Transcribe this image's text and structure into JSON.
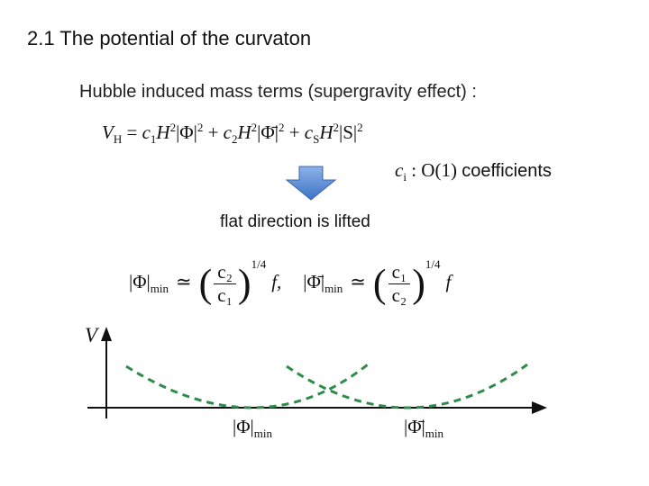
{
  "title": "2.1 The potential of the curvaton",
  "subtitle": "Hubble induced mass terms (supergravity effect) :",
  "potential_formula": [
    {
      "t": "V",
      "sub": "H"
    },
    {
      "t": " = "
    },
    {
      "t": "c",
      "sub": "1"
    },
    {
      "t": "H",
      "sup": "2"
    },
    {
      "t": "|Φ|",
      "sup": "2"
    },
    {
      "t": " + "
    },
    {
      "t": "c",
      "sub": "2"
    },
    {
      "t": "H",
      "sup": "2"
    },
    {
      "t": "|Φ̄|",
      "sup": "2"
    },
    {
      "t": " + "
    },
    {
      "t": "c",
      "sub": "S"
    },
    {
      "t": "H",
      "sup": "2"
    },
    {
      "t": "|S|",
      "sup": "2"
    }
  ],
  "coefficient_note": {
    "symbol": [
      {
        "t": "c",
        "sub": "i"
      },
      {
        "t": " : O(1) "
      }
    ],
    "text": "coefficients"
  },
  "arrow_caption": "flat direction is lifted",
  "minima_formula": [
    {
      "lhs": "|Φ|",
      "lhs_sub": "min",
      "rel": "≃",
      "num": "c₂",
      "den": "c₁",
      "exp": "1/4",
      "tail": "f,"
    },
    {
      "lhs": "|Φ̄|",
      "lhs_sub": "min",
      "rel": "≃",
      "num": "c₁",
      "den": "c₂",
      "exp": "1/4",
      "tail": "f"
    }
  ],
  "plot": {
    "y_label": "V",
    "x_labels": [
      {
        "t": "|Φ|",
        "sub": "min"
      },
      {
        "t": "|Φ̄|",
        "sub": "min"
      }
    ]
  }
}
